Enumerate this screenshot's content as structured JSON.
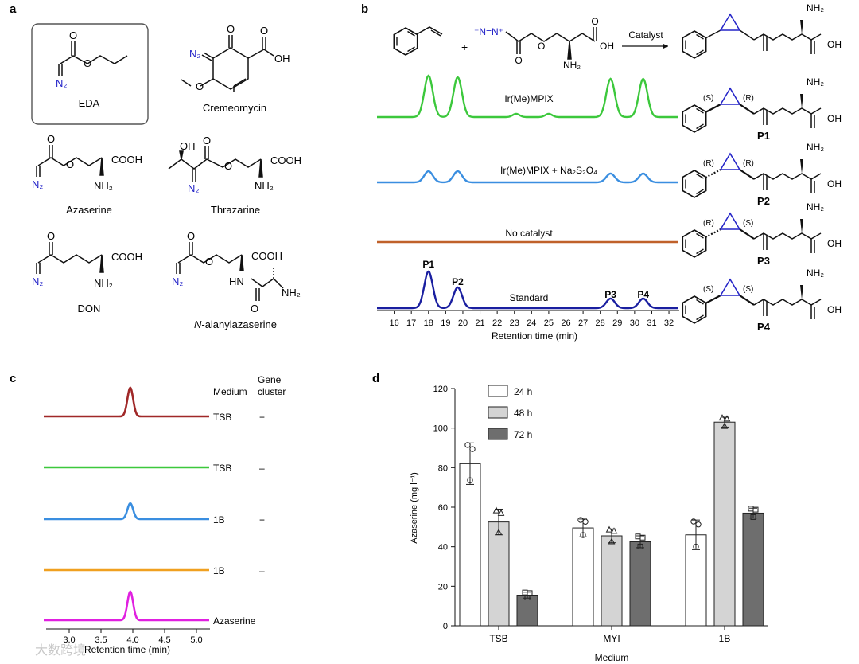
{
  "panel_letters": {
    "a": "a",
    "b": "b",
    "c": "c",
    "d": "d"
  },
  "panel_a": {
    "eda": {
      "label": "EDA",
      "n2": "N₂"
    },
    "cremeomycin": {
      "label": "Cremeomycin",
      "n2": "N₂",
      "oh": "OH"
    },
    "azaserine": {
      "label": "Azaserine",
      "n2": "N₂",
      "cooh": "COOH",
      "nh2": "NH₂"
    },
    "thrazarine": {
      "label": "Thrazarine",
      "n2": "N₂",
      "oh": "OH",
      "cooh": "COOH",
      "nh2": "NH₂"
    },
    "don": {
      "label": "DON",
      "n2": "N₂",
      "cooh": "COOH",
      "nh2": "NH₂"
    },
    "alanyl": {
      "label_prefix": "N",
      "label_rest": "-alanylazaserine",
      "n2": "N₂",
      "cooh": "COOH",
      "hn": "HN",
      "nh2": "NH₂"
    }
  },
  "panel_b": {
    "reaction": {
      "plus": "+",
      "catalyst": "Catalyst",
      "diazo": "⁻N=N⁺",
      "oh": "OH",
      "nh2": "NH₂"
    },
    "traces": [
      {
        "label": "Ir(Me)MPIX",
        "color": "#3cc83c",
        "product": "P1",
        "s1": "(S)",
        "s2": "(R)"
      },
      {
        "label": "Ir(Me)MPIX + Na₂S₂O₄",
        "color": "#3a8ee0",
        "product": "P2",
        "s1": "(R)",
        "s2": "(R)"
      },
      {
        "label": "No catalyst",
        "color": "#c0612a",
        "product": "P3",
        "s1": "(R)",
        "s2": "(S)"
      },
      {
        "label": "Standard",
        "color": "#1a1fa0",
        "product": "P4",
        "s1": "(S)",
        "s2": "(S)"
      }
    ],
    "peak_labels": [
      "P1",
      "P2",
      "P3",
      "P4"
    ],
    "x_ticks": [
      "16",
      "17",
      "18",
      "19",
      "20",
      "21",
      "22",
      "23",
      "24",
      "25",
      "26",
      "27",
      "28",
      "29",
      "30",
      "31",
      "32"
    ],
    "x_title": "Retention time (min)",
    "oh": "OH",
    "nh2": "NH₂"
  },
  "panel_c": {
    "header_medium": "Medium",
    "header_gene": "Gene",
    "header_cluster": "cluster",
    "traces": [
      {
        "medium": "TSB",
        "gene": "+",
        "color": "#a02828",
        "peak": 1.0
      },
      {
        "medium": "TSB",
        "gene": "–",
        "color": "#3cc83c",
        "peak": 0
      },
      {
        "medium": "1B",
        "gene": "+",
        "color": "#3a8ee0",
        "peak": 0.55
      },
      {
        "medium": "1B",
        "gene": "–",
        "color": "#f0a020",
        "peak": 0
      },
      {
        "medium": "Azaserine",
        "gene": "",
        "color": "#e020e0",
        "peak": 1.0
      }
    ],
    "x_ticks": [
      "3.0",
      "3.5",
      "4.0",
      "4.5",
      "5.0"
    ],
    "x_title": "Retention time (min)"
  },
  "chart_data": {
    "type": "bar",
    "categories": [
      "TSB",
      "MYI",
      "1B"
    ],
    "series": [
      {
        "name": "24 h",
        "color": "#ffffff",
        "values": [
          82,
          49.5,
          46
        ],
        "errors": [
          10.5,
          4.5,
          7.5
        ]
      },
      {
        "name": "48 h",
        "color": "#d4d4d4",
        "values": [
          52.5,
          45.5,
          103
        ],
        "errors": [
          6.5,
          3.5,
          2.5
        ]
      },
      {
        "name": "72 h",
        "color": "#6e6e6e",
        "values": [
          15.5,
          42.5,
          57
        ],
        "errors": [
          1.5,
          3,
          2.5
        ]
      }
    ],
    "xlabel": "Medium",
    "ylabel": "Azaserine (mg l⁻¹)",
    "ylim": [
      0,
      120
    ],
    "y_ticks": [
      "0",
      "20",
      "40",
      "60",
      "80",
      "100",
      "120"
    ],
    "legend": "top-left"
  },
  "watermark": "大数跨境"
}
